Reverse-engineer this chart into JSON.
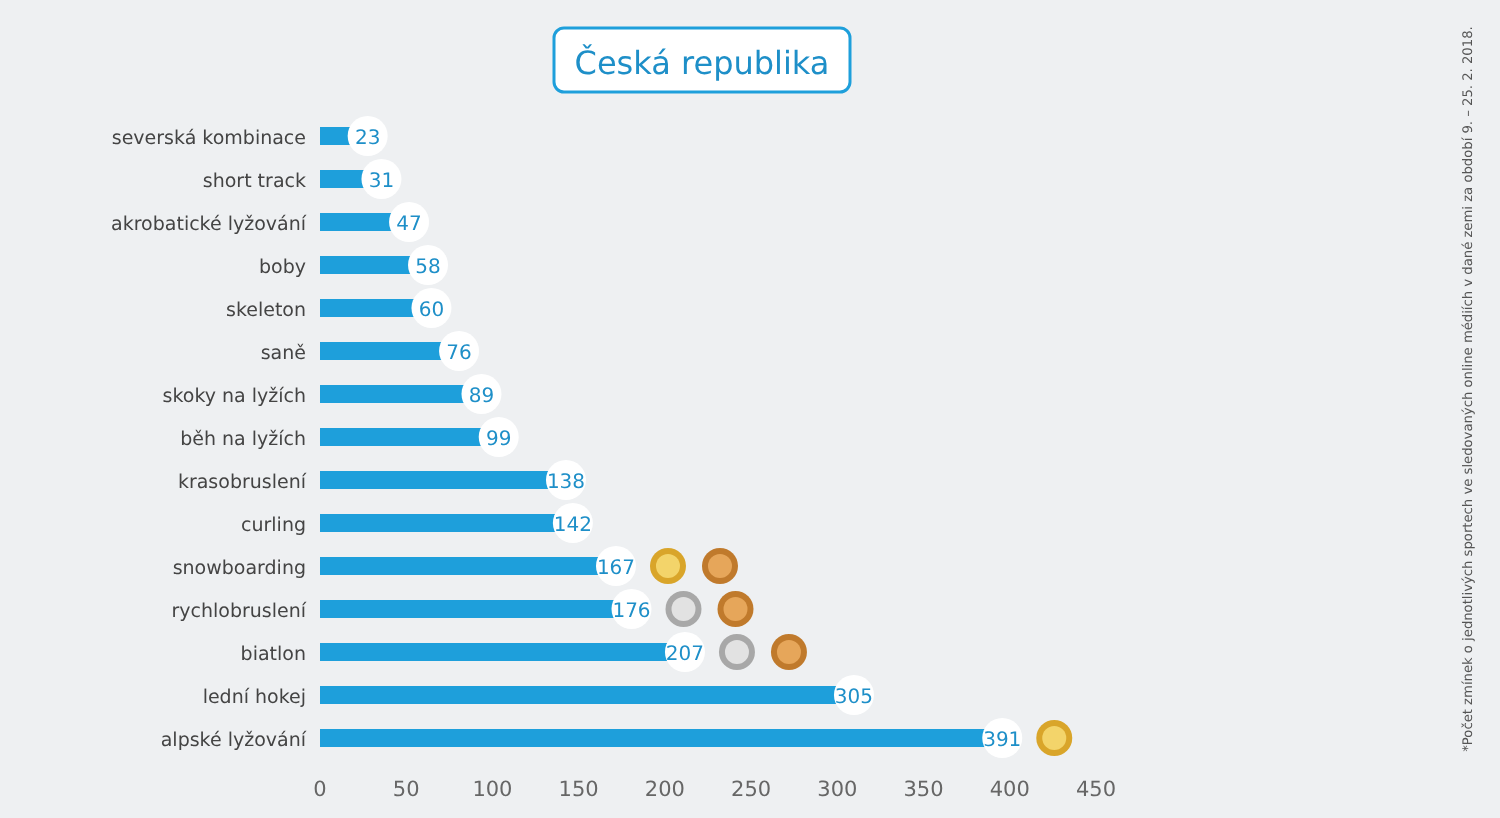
{
  "chart_data": {
    "type": "bar",
    "orientation": "horizontal",
    "title": "Česká republika",
    "categories": [
      "severská kombinace",
      "short track",
      "akrobatické lyžování",
      "boby",
      "skeleton",
      "saně",
      "skoky na lyžích",
      "běh na lyžích",
      "krasobruslení",
      "curling",
      "snowboarding",
      "rychlobruslení",
      "biatlon",
      "lední hokej",
      "alpské lyžování"
    ],
    "values": [
      23,
      31,
      47,
      58,
      60,
      76,
      89,
      99,
      138,
      142,
      167,
      176,
      207,
      305,
      391
    ],
    "color": "#1e9fdb",
    "data_labels": true,
    "xlim": [
      0,
      450
    ],
    "xticks": [
      0,
      50,
      100,
      150,
      200,
      250,
      300,
      350,
      400,
      450
    ],
    "annotations": [
      "*Počet zmínek o jednotlivých sportech ve sledovaných online médiích v dané zemi za období 9. – 25. 2. 2018."
    ]
  }
}
